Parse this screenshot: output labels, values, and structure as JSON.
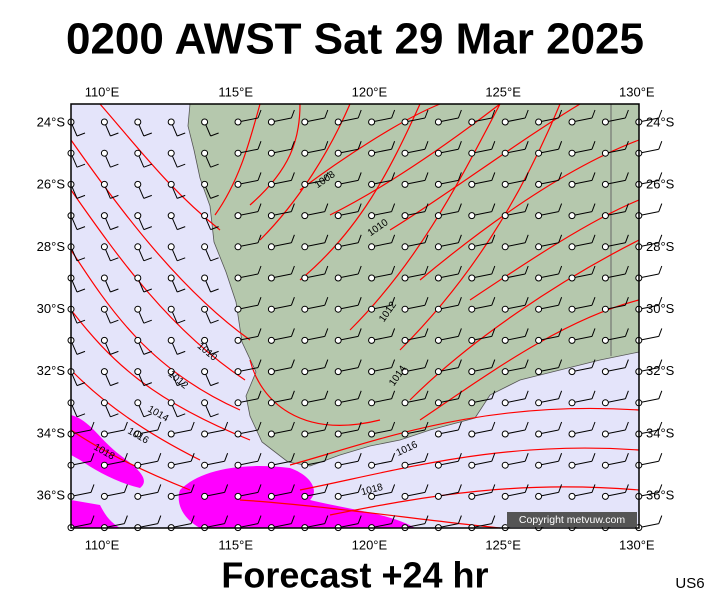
{
  "header": {
    "title": "0200 AWST Sat 29 Mar 2025"
  },
  "map": {
    "lon_labels": [
      "110°E",
      "115°E",
      "120°E",
      "125°E",
      "130°E"
    ],
    "lat_labels": [
      "24°S",
      "26°S",
      "28°S",
      "30°S",
      "32°S",
      "34°S",
      "36°S"
    ],
    "isobar_labels": [
      "1008",
      "1010",
      "1012",
      "1014",
      "1016",
      "1018"
    ],
    "copyright": "Copyright metvuw.com"
  },
  "footer": {
    "forecast": "Forecast +24 hr",
    "code": "US6"
  }
}
